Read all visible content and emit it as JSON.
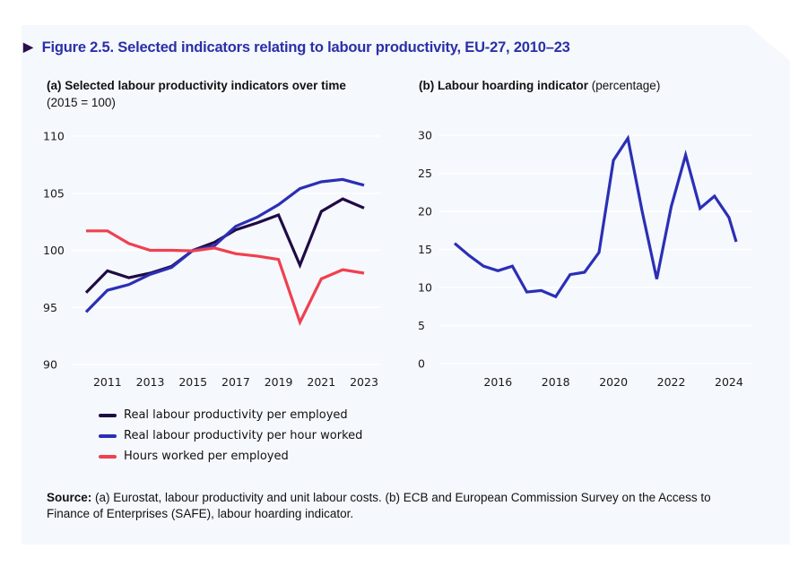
{
  "figure": {
    "title": "Figure 2.5.  Selected indicators relating to labour productivity, EU-27, 2010–23",
    "arrow_icon": "▶"
  },
  "panel_a": {
    "title_bold": "(a) Selected labour productivity indicators over time",
    "title_note": "(2015 = 100)"
  },
  "panel_b": {
    "title_bold": "(b) Labour hoarding indicator",
    "title_note": "(percentage)"
  },
  "source": {
    "label": "Source:",
    "text": "(a) Eurostat, labour productivity and unit labour costs. (b) ECB and European Commission Survey on the Access to Finance of Enterprises (SAFE), labour hoarding indicator."
  },
  "colors": {
    "title": "#2b2fa8",
    "employed": "#200a45",
    "hour": "#2b2fb5",
    "hours_worked": "#f0404f"
  },
  "chart_data": [
    {
      "type": "line",
      "title": "(a) Selected labour productivity indicators over time (2015 = 100)",
      "xlabel": "",
      "ylabel": "",
      "x": [
        2010,
        2011,
        2012,
        2013,
        2014,
        2015,
        2016,
        2017,
        2018,
        2019,
        2020,
        2021,
        2022,
        2023
      ],
      "xticks": [
        "2011",
        "2013",
        "2015",
        "2017",
        "2019",
        "2021",
        "2023"
      ],
      "xtick_values": [
        2011,
        2013,
        2015,
        2017,
        2019,
        2021,
        2023
      ],
      "yticks": [
        "110",
        "105",
        "100",
        "95",
        "90"
      ],
      "ytick_values": [
        110,
        105,
        100,
        95,
        90
      ],
      "ylim": [
        90,
        110
      ],
      "xlim": [
        2010,
        2023
      ],
      "grid": "horizontal",
      "legend_position": "bottom",
      "series": [
        {
          "name": "Real labour productivity per employed",
          "color_key": "employed",
          "values": [
            96.3,
            98.2,
            97.6,
            98.0,
            98.6,
            100.0,
            100.7,
            101.8,
            102.4,
            103.1,
            98.7,
            103.4,
            104.5,
            103.7
          ]
        },
        {
          "name": "Real labour productivity per hour worked",
          "color_key": "hour",
          "values": [
            94.6,
            96.5,
            97.0,
            97.9,
            98.5,
            100.0,
            100.4,
            102.1,
            102.9,
            104.0,
            105.4,
            106.0,
            106.2,
            105.7
          ]
        },
        {
          "name": "Hours worked per employed",
          "color_key": "hours_worked",
          "values": [
            101.7,
            101.7,
            100.6,
            100.0,
            100.0,
            99.95,
            100.2,
            99.7,
            99.5,
            99.2,
            93.7,
            97.5,
            98.3,
            98.0
          ]
        }
      ]
    },
    {
      "type": "line",
      "title": "(b) Labour hoarding indicator (percentage)",
      "xlabel": "",
      "ylabel": "",
      "x": [
        2014.5,
        2015.0,
        2015.5,
        2016.0,
        2016.5,
        2017.0,
        2017.5,
        2018.0,
        2018.5,
        2019.0,
        2019.5,
        2020.0,
        2020.5,
        2021.0,
        2021.5,
        2022.0,
        2022.5,
        2023.0,
        2023.5,
        2024.0,
        2024.25
      ],
      "xticks": [
        "2016",
        "2018",
        "2020",
        "2022",
        "2024"
      ],
      "xtick_values": [
        2016,
        2018,
        2020,
        2022,
        2024
      ],
      "yticks": [
        "30",
        "25",
        "20",
        "15",
        "10",
        "5",
        "0"
      ],
      "ytick_values": [
        30,
        25,
        20,
        15,
        10,
        5,
        0
      ],
      "ylim": [
        0,
        30
      ],
      "xlim": [
        2014.5,
        2024.25
      ],
      "grid": "horizontal",
      "series": [
        {
          "name": "Labour hoarding indicator",
          "color_key": "hour",
          "values": [
            15.8,
            14.2,
            12.8,
            12.2,
            12.8,
            9.4,
            9.6,
            8.8,
            11.7,
            12.0,
            14.6,
            26.7,
            29.6,
            19.9,
            11.1,
            20.6,
            27.4,
            20.4,
            22.0,
            19.2,
            16.0
          ]
        }
      ]
    }
  ]
}
